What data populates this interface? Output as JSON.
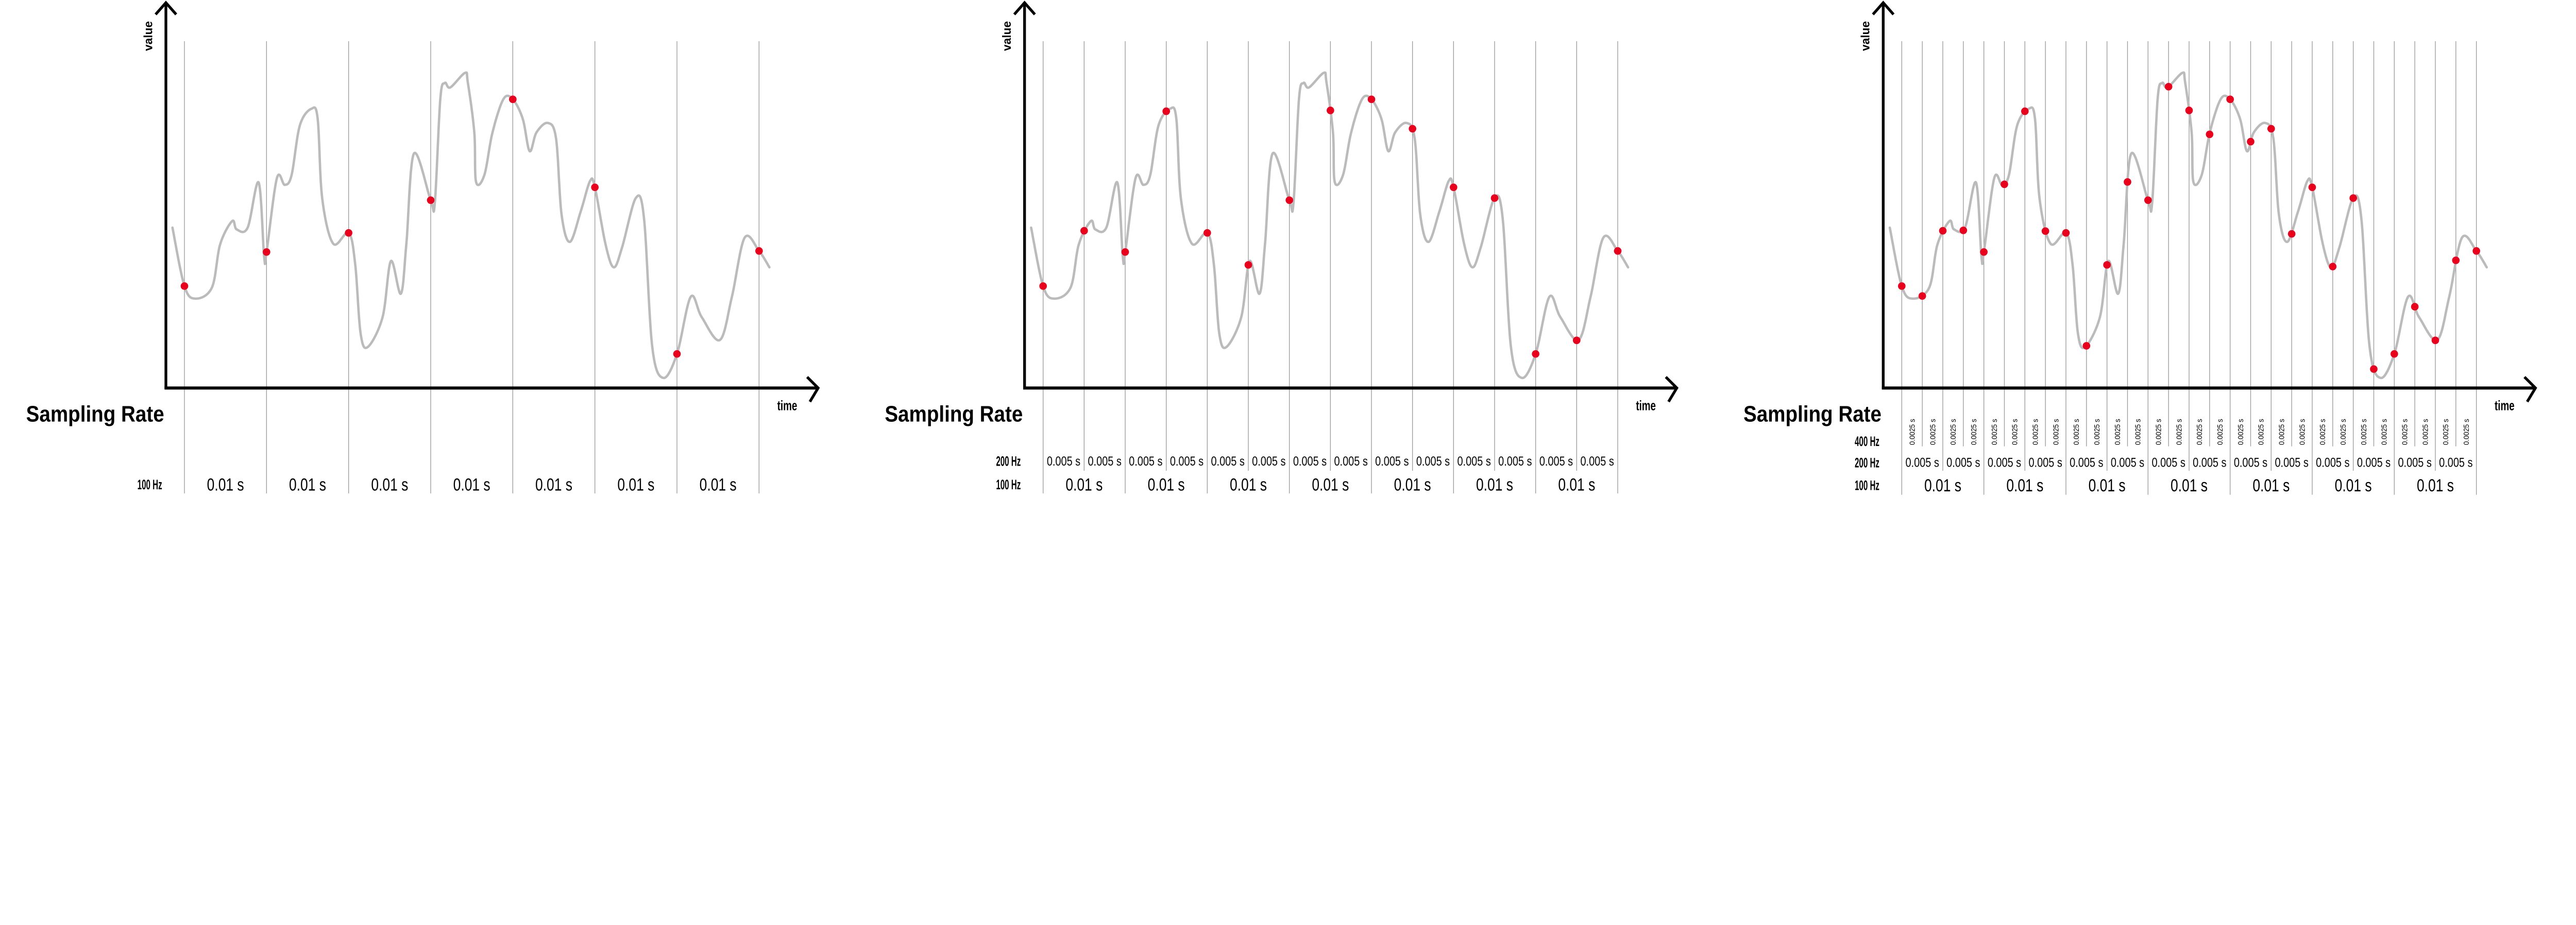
{
  "colors": {
    "signal": "#bbbbbb",
    "sample": "#e8001c",
    "grid": "#9a9a9a",
    "axis": "#000000"
  },
  "signal": {
    "description_units": "time in ms from first sample, value in arbitrary units 0-100",
    "points": [
      [
        -1.46,
        45.9
      ],
      [
        0,
        29.1
      ],
      [
        1.34,
        25.5
      ],
      [
        3.35,
        28.7
      ],
      [
        4.35,
        41.1
      ],
      [
        5.82,
        47.8
      ],
      [
        6.36,
        45.4
      ],
      [
        7.7,
        45.9
      ],
      [
        9.04,
        58.9
      ],
      [
        9.71,
        37.5
      ],
      [
        10,
        38.9
      ],
      [
        11.26,
        60.1
      ],
      [
        12.22,
        58.2
      ],
      [
        13.05,
        61.0
      ],
      [
        14.06,
        75.3
      ],
      [
        15.48,
        80.1
      ],
      [
        16.23,
        77.2
      ],
      [
        16.78,
        54.4
      ],
      [
        18.12,
        41.3
      ],
      [
        20,
        44.4
      ],
      [
        20.8,
        35.4
      ],
      [
        21.46,
        15.5
      ],
      [
        22.34,
        11.6
      ],
      [
        24.14,
        20.2
      ],
      [
        25.15,
        36.3
      ],
      [
        26.36,
        26.9
      ],
      [
        27.03,
        41.1
      ],
      [
        27.95,
        67.2
      ],
      [
        30,
        53.8
      ],
      [
        30.5,
        53.0
      ],
      [
        31.17,
        82.9
      ],
      [
        31.72,
        87.5
      ],
      [
        32.38,
        86.2
      ],
      [
        34.18,
        90.4
      ],
      [
        34.52,
        87.7
      ],
      [
        35.31,
        73.3
      ],
      [
        35.52,
        59.1
      ],
      [
        36.53,
        61.0
      ],
      [
        37.53,
        73.3
      ],
      [
        38.87,
        82.9
      ],
      [
        40,
        82.8
      ],
      [
        41.21,
        77.2
      ],
      [
        42.05,
        67.9
      ],
      [
        42.89,
        73.3
      ],
      [
        44.27,
        76.0
      ],
      [
        45.27,
        71.5
      ],
      [
        45.94,
        49.7
      ],
      [
        46.95,
        41.8
      ],
      [
        48.28,
        50.6
      ],
      [
        49.41,
        59.3
      ],
      [
        50,
        57.5
      ],
      [
        51.3,
        41.1
      ],
      [
        52.3,
        34.5
      ],
      [
        53.31,
        40.2
      ],
      [
        54.98,
        54.4
      ],
      [
        55.98,
        48.7
      ],
      [
        56.99,
        11.6
      ],
      [
        58.33,
        2.7
      ],
      [
        60,
        9.6
      ],
      [
        61.67,
        26.0
      ],
      [
        63.01,
        20.2
      ],
      [
        65.23,
        13.6
      ],
      [
        66.69,
        26.0
      ],
      [
        68.24,
        43.0
      ],
      [
        70,
        39.2
      ],
      [
        71.26,
        34.5
      ]
    ]
  },
  "chart_data": [
    {
      "type": "line",
      "title": "Sampling Rate",
      "xlabel": "time",
      "ylabel": "value",
      "duration_ms": 70,
      "sample_rate_hz": 100,
      "sample_interval_ms": 10,
      "rows": [
        {
          "label": "100 Hz",
          "interval_label": "0.01 s",
          "interval_ms": 10
        }
      ]
    },
    {
      "type": "line",
      "title": "Sampling Rate",
      "xlabel": "time",
      "ylabel": "value",
      "duration_ms": 70,
      "sample_rate_hz": 200,
      "sample_interval_ms": 5,
      "rows": [
        {
          "label": "200 Hz",
          "interval_label": "0.005 s",
          "interval_ms": 5
        },
        {
          "label": "100 Hz",
          "interval_label": "0.01 s",
          "interval_ms": 10
        }
      ]
    },
    {
      "type": "line",
      "title": "Sampling Rate",
      "xlabel": "time",
      "ylabel": "value",
      "duration_ms": 70,
      "sample_rate_hz": 400,
      "sample_interval_ms": 2.5,
      "rows": [
        {
          "label": "400 Hz",
          "interval_label": "0.0025 s",
          "interval_ms": 2.5
        },
        {
          "label": "200 Hz",
          "interval_label": "0.005 s",
          "interval_ms": 5
        },
        {
          "label": "100 Hz",
          "interval_label": "0.01 s",
          "interval_ms": 10
        }
      ]
    }
  ]
}
